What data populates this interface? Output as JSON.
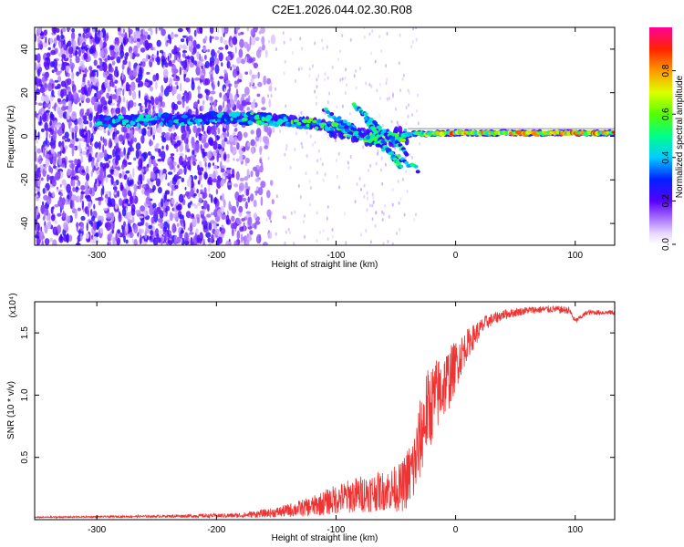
{
  "title": "C2E1.2026.044.02.30.R08",
  "chart_data": [
    {
      "type": "heatmap",
      "name": "spectrogram",
      "xlabel": "Height of straight line (km)",
      "ylabel": "Frequency (Hz)",
      "xlim": [
        -352,
        133
      ],
      "ylim": [
        -50,
        50
      ],
      "xticks": [
        -300,
        -200,
        -100,
        0,
        100
      ],
      "yticks": [
        -40,
        -20,
        0,
        20,
        40
      ],
      "colorbar": {
        "label": "Normalized spectral amplitude",
        "range": [
          0,
          1
        ],
        "ticks": [
          0.0,
          0.2,
          0.4,
          0.6,
          0.8
        ]
      },
      "ridge": [
        {
          "x": -290,
          "f": 7,
          "amp": 0.45
        },
        {
          "x": -240,
          "f": 7.5,
          "amp": 0.4
        },
        {
          "x": -200,
          "f": 8.5,
          "amp": 0.45
        },
        {
          "x": -160,
          "f": 8,
          "amp": 0.5
        },
        {
          "x": -120,
          "f": 6,
          "amp": 0.55
        },
        {
          "x": -95,
          "f": 3,
          "amp": 0.6
        },
        {
          "x": -60,
          "f": -2,
          "amp": 0.6
        },
        {
          "x": -40,
          "f": 1,
          "amp": 0.55
        },
        {
          "x": 0,
          "f": 1.5,
          "amp": 0.8
        },
        {
          "x": 60,
          "f": 1.5,
          "amp": 0.75
        },
        {
          "x": 133,
          "f": 1.5,
          "amp": 0.8
        }
      ]
    },
    {
      "type": "line",
      "name": "snr",
      "xlabel": "Height of straight line (km)",
      "ylabel": "SNR (10 * v/v)",
      "y_multiplier": "(x10⁴)",
      "xlim": [
        -352,
        133
      ],
      "ylim": [
        0,
        1.75
      ],
      "xticks": [
        -300,
        -200,
        -100,
        0,
        100
      ],
      "yticks": [
        0.5,
        1.0,
        1.5
      ],
      "ytick_labels": [
        "0.5",
        "1.0",
        "1.5"
      ],
      "series": [
        {
          "name": "SNR",
          "color": "#ee3333",
          "x": [
            -352,
            -250,
            -180,
            -150,
            -120,
            -100,
            -80,
            -60,
            -45,
            -35,
            -25,
            -15,
            -5,
            0,
            10,
            25,
            40,
            60,
            80,
            95,
            100,
            110,
            133
          ],
          "y": [
            0.02,
            0.03,
            0.04,
            0.07,
            0.13,
            0.2,
            0.25,
            0.28,
            0.32,
            0.5,
            0.95,
            1.1,
            1.22,
            1.3,
            1.45,
            1.6,
            1.66,
            1.69,
            1.7,
            1.69,
            1.6,
            1.67,
            1.67
          ],
          "noise": [
            0.005,
            0.01,
            0.02,
            0.04,
            0.08,
            0.12,
            0.15,
            0.16,
            0.2,
            0.3,
            0.35,
            0.3,
            0.25,
            0.2,
            0.12,
            0.06,
            0.04,
            0.03,
            0.03,
            0.03,
            0.02,
            0.02,
            0.02
          ]
        }
      ]
    }
  ]
}
